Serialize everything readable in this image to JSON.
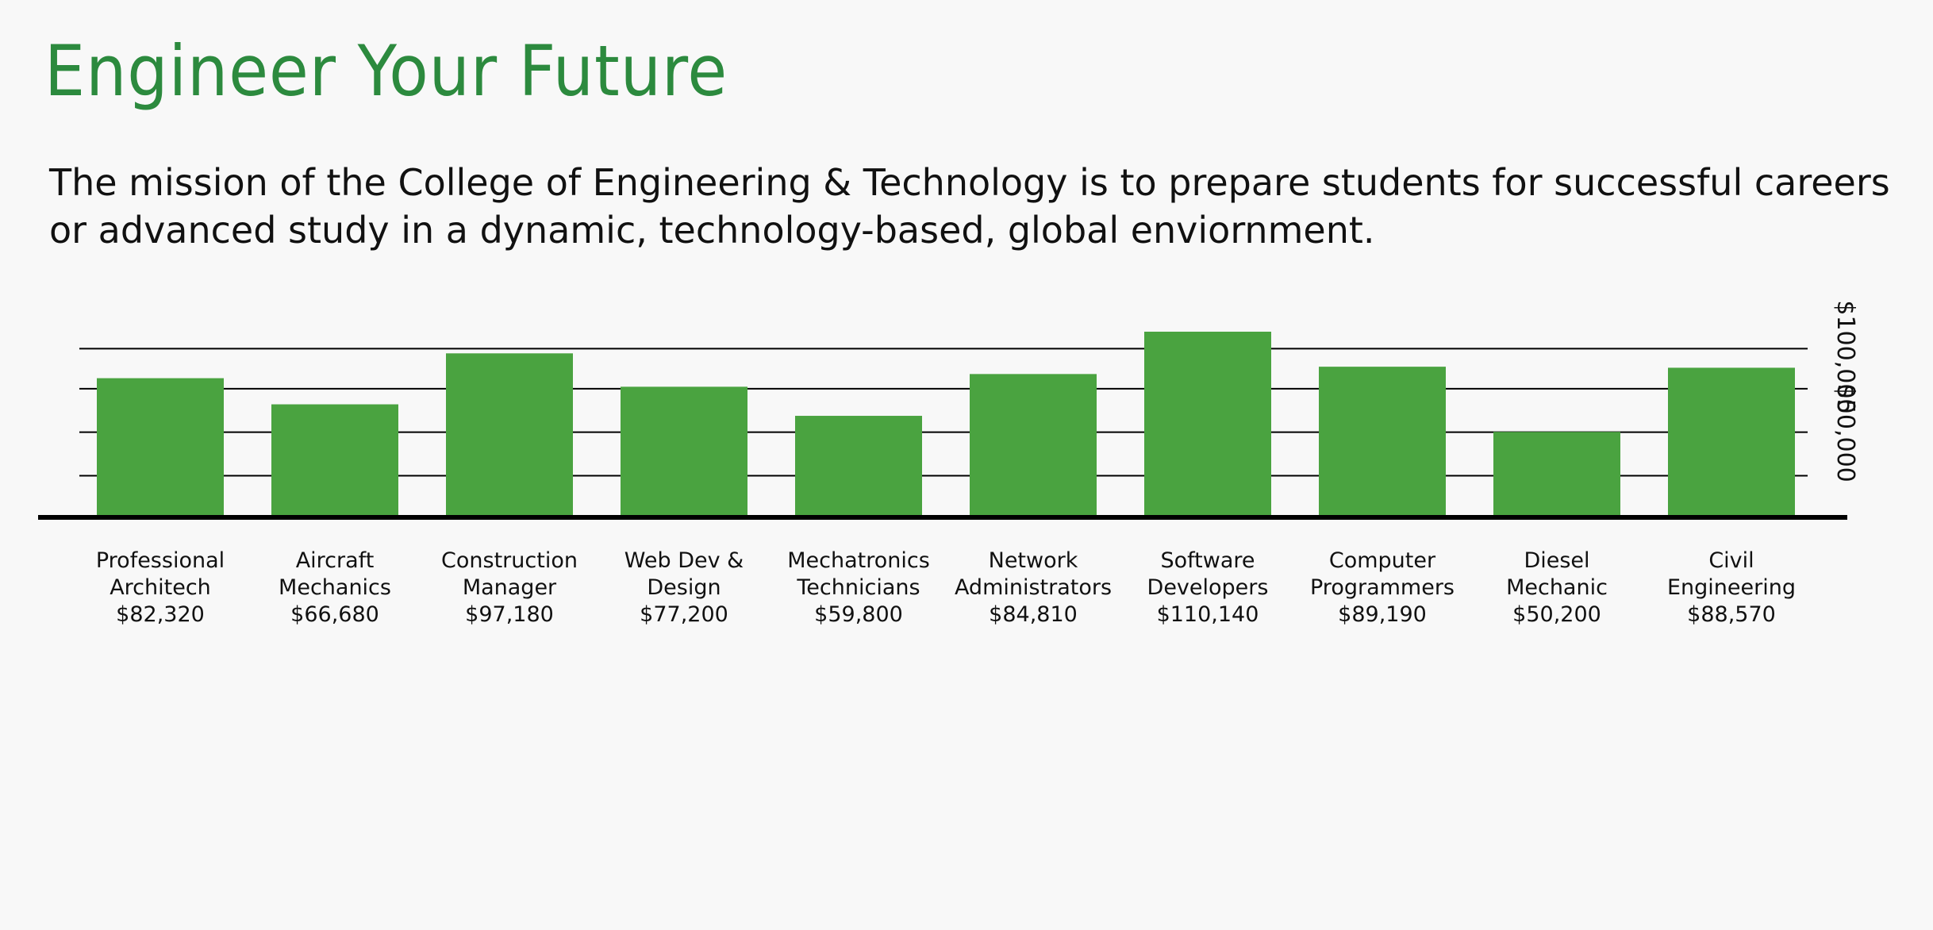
{
  "header": {
    "title": "Engineer Your Future",
    "mission": "The mission of the College of Engineering & Technology is to prepare students for successful careers or advanced study in a dynamic, technology-based, global enviornment."
  },
  "colors": {
    "bar": "#4aa340",
    "title": "#2c8a3e",
    "text": "#111111",
    "grid": "#000000"
  },
  "chart_data": {
    "type": "bar",
    "title": "",
    "xlabel": "",
    "ylabel": "",
    "ylim": [
      0,
      110140
    ],
    "grid": true,
    "gridlines": [
      24000,
      50000,
      76000,
      100000
    ],
    "axis_labels": [
      {
        "value": 100000,
        "label": "$100,000"
      },
      {
        "value": 50000,
        "label": "$50,000"
      }
    ],
    "categories": [
      [
        "Professional",
        "Architech"
      ],
      [
        "Aircraft",
        "Mechanics"
      ],
      [
        "Construction",
        "Manager"
      ],
      [
        "Web Dev &",
        "Design"
      ],
      [
        "Mechatronics",
        "Technicians"
      ],
      [
        "Network",
        "Administrators"
      ],
      [
        "Software",
        "Developers"
      ],
      [
        "Computer",
        "Programmers"
      ],
      [
        "Diesel",
        "Mechanic"
      ],
      [
        "Civil",
        "Engineering"
      ]
    ],
    "value_labels": [
      "$82,320",
      "$66,680",
      "$97,180",
      "$77,200",
      "$59,800",
      "$84,810",
      "$110,140",
      "$89,190",
      "$50,200",
      "$88,570"
    ],
    "values": [
      82320,
      66680,
      97180,
      77200,
      59800,
      84810,
      110140,
      89190,
      50200,
      88570
    ]
  }
}
